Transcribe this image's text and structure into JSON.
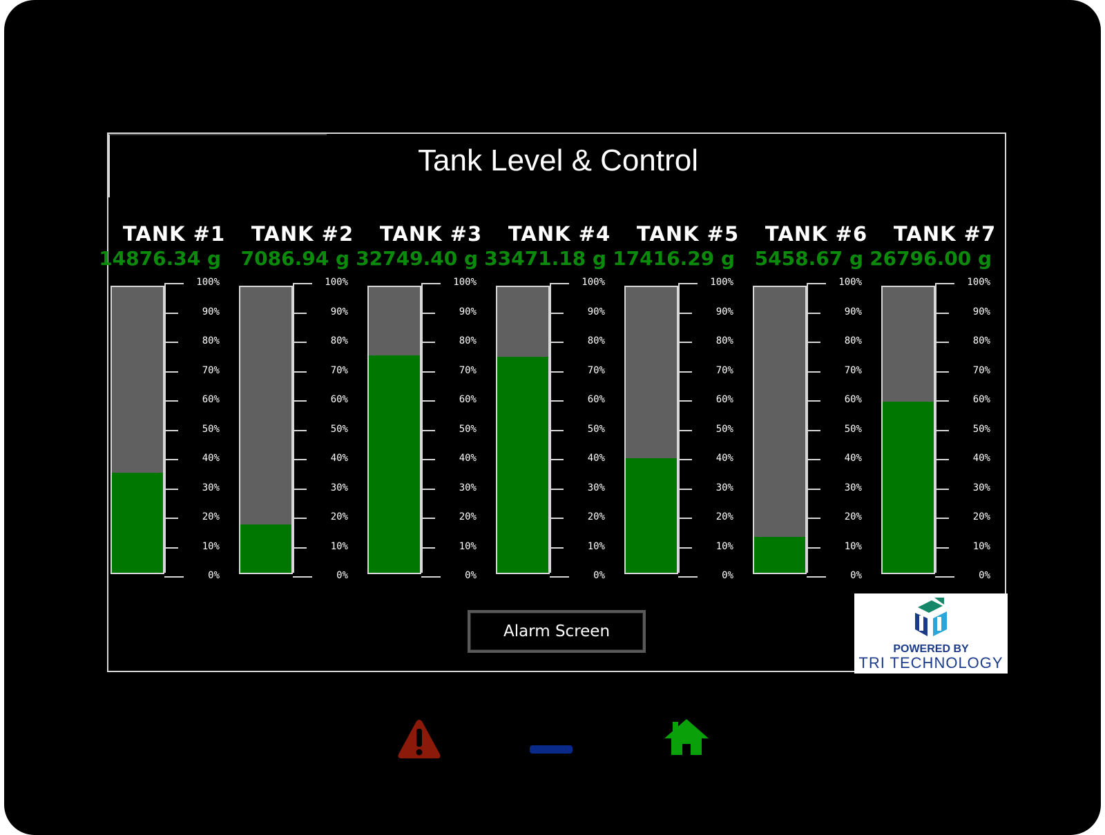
{
  "screen": {
    "title": "Tank Level & Control"
  },
  "scale_labels": [
    "100%",
    "90%",
    "80%",
    "70%",
    "60%",
    "50%",
    "40%",
    "30%",
    "20%",
    "10%",
    "0%"
  ],
  "tanks": [
    {
      "name": "TANK #1",
      "weight": "14876.34 g",
      "level_percent": 35
    },
    {
      "name": "TANK #2",
      "weight": "7086.94 g",
      "level_percent": 17
    },
    {
      "name": "TANK #3",
      "weight": "32749.40 g",
      "level_percent": 76
    },
    {
      "name": "TANK #4",
      "weight": "33471.18 g",
      "level_percent": 75.5
    },
    {
      "name": "TANK #5",
      "weight": "17416.29 g",
      "level_percent": 40
    },
    {
      "name": "TANK #6",
      "weight": "5458.67 g",
      "level_percent": 12.5
    },
    {
      "name": "TANK #7",
      "weight": "26796.00 g",
      "level_percent": 60
    }
  ],
  "controls": {
    "alarm_button_label": "Alarm Screen"
  },
  "logo": {
    "line1": "POWERED BY",
    "line2": "TRI TECHNOLOGY"
  },
  "colors": {
    "fill": "#007800",
    "empty": "#606060",
    "weight_text": "#0b8a0b",
    "alarm_icon": "#8b1a0a",
    "minus_icon": "#0a2a8a",
    "home_icon": "#0aa00a"
  },
  "hardware_buttons": [
    {
      "icon": "warning-icon"
    },
    {
      "icon": "minus-icon"
    },
    {
      "icon": "home-icon"
    }
  ]
}
